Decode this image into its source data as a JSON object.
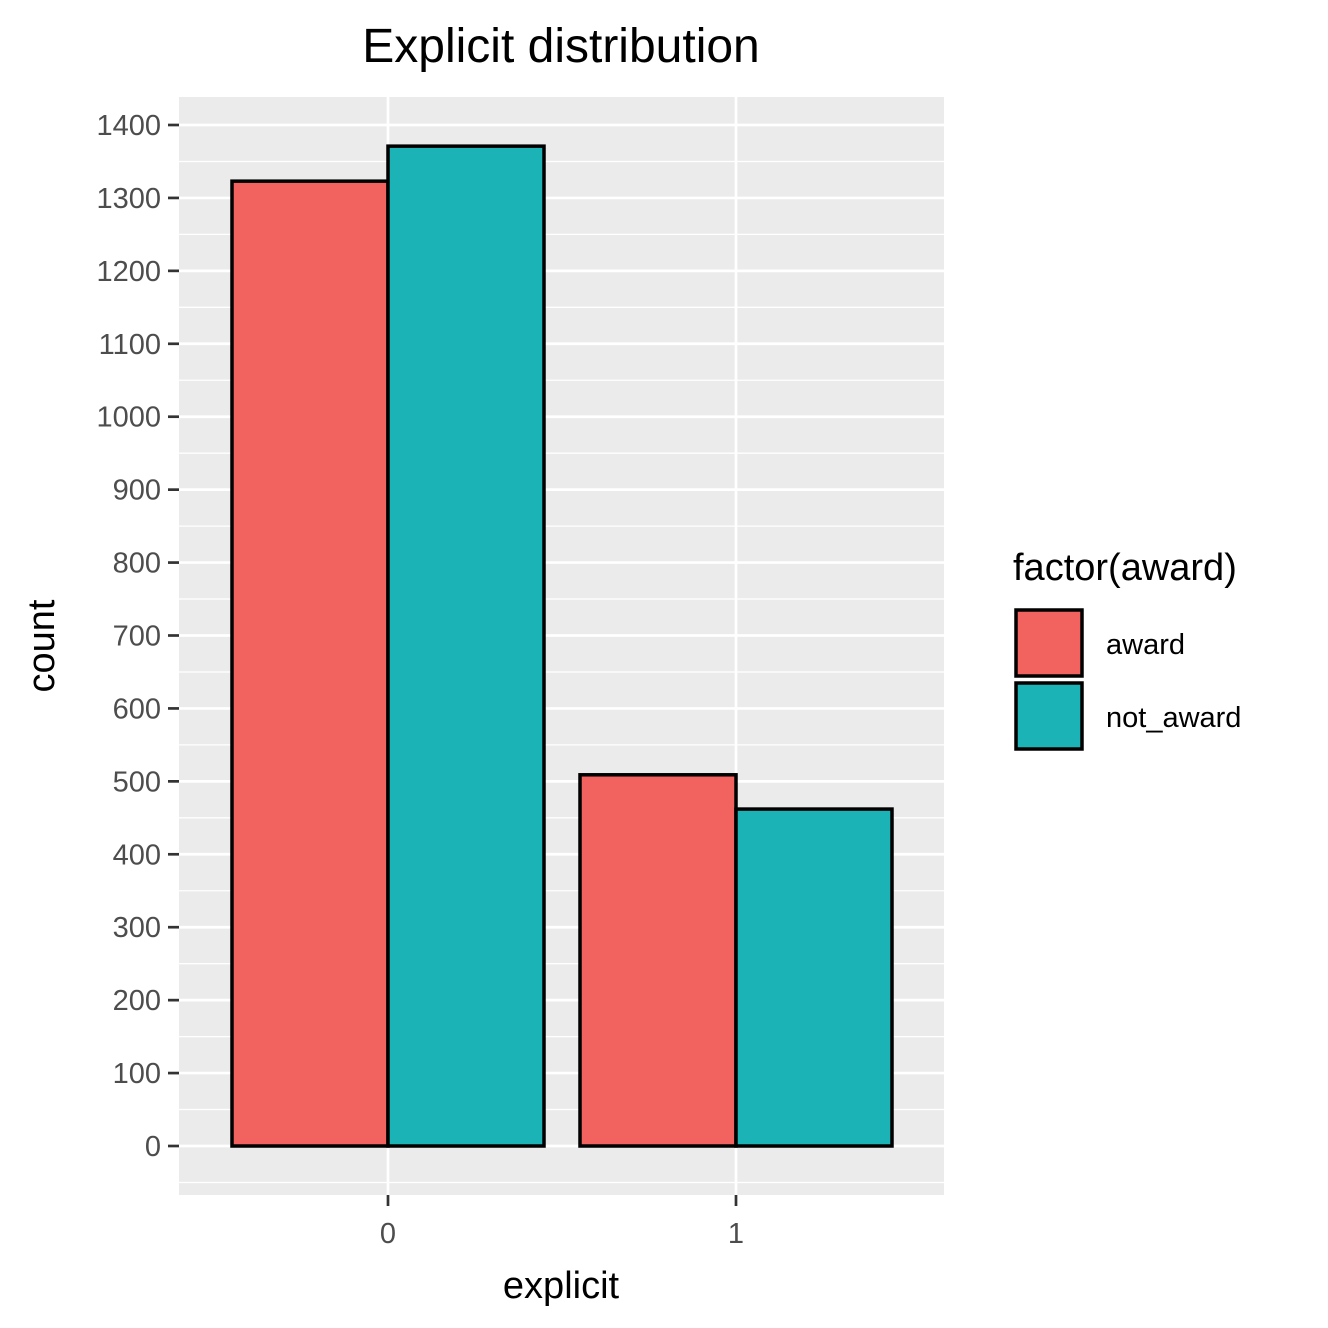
{
  "chart_data": {
    "type": "bar",
    "title": "Explicit distribution",
    "xlabel": "explicit",
    "ylabel": "count",
    "categories": [
      "0",
      "1"
    ],
    "series": [
      {
        "name": "award",
        "color": "#F26360",
        "values": [
          1323,
          509
        ]
      },
      {
        "name": "not_award",
        "color": "#1CB3B7",
        "values": [
          1371,
          462
        ]
      }
    ],
    "ylim": [
      -67,
      1440
    ],
    "yticks": [
      0,
      100,
      200,
      300,
      400,
      500,
      600,
      700,
      800,
      900,
      1000,
      1100,
      1200,
      1300,
      1400
    ],
    "grid": true,
    "legend": {
      "title": "factor(award)",
      "position": "right"
    }
  }
}
